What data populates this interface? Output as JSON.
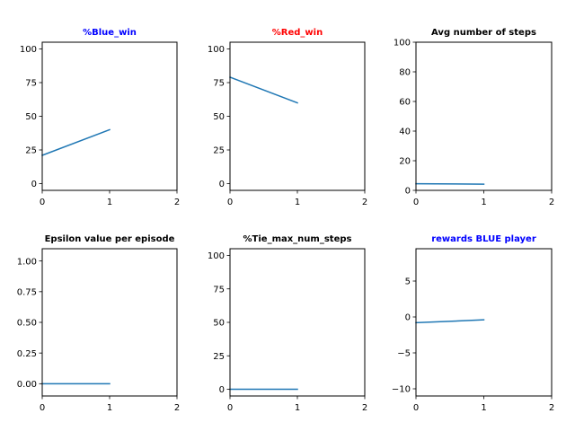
{
  "chart_data": [
    {
      "type": "line",
      "title": "%Blue_win",
      "title_color": "#0000ff",
      "xlim": [
        0,
        2
      ],
      "ylim": [
        -5,
        105
      ],
      "xticks": [
        0,
        1,
        2
      ],
      "yticks": [
        0,
        25,
        50,
        75,
        100
      ],
      "x_tick_labels": [
        "0",
        "1",
        "2"
      ],
      "y_tick_labels": [
        "0",
        "25",
        "50",
        "75",
        "100"
      ],
      "series": [
        {
          "x": [
            0,
            1
          ],
          "y": [
            21,
            40
          ],
          "color": "#1f77b4"
        }
      ]
    },
    {
      "type": "line",
      "title": "%Red_win",
      "title_color": "#ff0000",
      "xlim": [
        0,
        2
      ],
      "ylim": [
        -5,
        105
      ],
      "xticks": [
        0,
        1,
        2
      ],
      "yticks": [
        0,
        25,
        50,
        75,
        100
      ],
      "x_tick_labels": [
        "0",
        "1",
        "2"
      ],
      "y_tick_labels": [
        "0",
        "25",
        "50",
        "75",
        "100"
      ],
      "series": [
        {
          "x": [
            0,
            1
          ],
          "y": [
            79,
            60
          ],
          "color": "#1f77b4"
        }
      ]
    },
    {
      "type": "line",
      "title": "Avg number of steps",
      "title_color": "#000000",
      "xlim": [
        0,
        2
      ],
      "ylim": [
        0,
        100
      ],
      "xticks": [
        0,
        1,
        2
      ],
      "yticks": [
        0,
        20,
        40,
        60,
        80,
        100
      ],
      "x_tick_labels": [
        "0",
        "1",
        "2"
      ],
      "y_tick_labels": [
        "0",
        "20",
        "40",
        "60",
        "80",
        "100"
      ],
      "series": [
        {
          "x": [
            0,
            1
          ],
          "y": [
            4.5,
            4.2
          ],
          "color": "#1f77b4"
        }
      ]
    },
    {
      "type": "line",
      "title": "Epsilon value per episode",
      "title_color": "#000000",
      "xlim": [
        0,
        2
      ],
      "ylim": [
        -0.1,
        1.1
      ],
      "xticks": [
        0,
        1,
        2
      ],
      "yticks": [
        0,
        0.25,
        0.5,
        0.75,
        1.0
      ],
      "x_tick_labels": [
        "0",
        "1",
        "2"
      ],
      "y_tick_labels": [
        "0.00",
        "0.25",
        "0.50",
        "0.75",
        "1.00"
      ],
      "series": [
        {
          "x": [
            0,
            1
          ],
          "y": [
            0,
            0
          ],
          "color": "#1f77b4"
        }
      ]
    },
    {
      "type": "line",
      "title": "%Tie_max_num_steps",
      "title_color": "#000000",
      "xlim": [
        0,
        2
      ],
      "ylim": [
        -5,
        105
      ],
      "xticks": [
        0,
        1,
        2
      ],
      "yticks": [
        0,
        25,
        50,
        75,
        100
      ],
      "x_tick_labels": [
        "0",
        "1",
        "2"
      ],
      "y_tick_labels": [
        "0",
        "25",
        "50",
        "75",
        "100"
      ],
      "series": [
        {
          "x": [
            0,
            1
          ],
          "y": [
            0,
            0
          ],
          "color": "#1f77b4"
        }
      ]
    },
    {
      "type": "line",
      "title": "rewards BLUE player",
      "title_color": "#0000ff",
      "xlim": [
        0,
        2
      ],
      "ylim": [
        -11,
        9.5
      ],
      "xticks": [
        0,
        1,
        2
      ],
      "yticks": [
        -10,
        -5,
        0,
        5
      ],
      "x_tick_labels": [
        "0",
        "1",
        "2"
      ],
      "y_tick_labels": [
        "−10",
        "−5",
        "0",
        "5"
      ],
      "series": [
        {
          "x": [
            0,
            1
          ],
          "y": [
            -0.8,
            -0.4
          ],
          "color": "#1f77b4"
        }
      ]
    }
  ]
}
